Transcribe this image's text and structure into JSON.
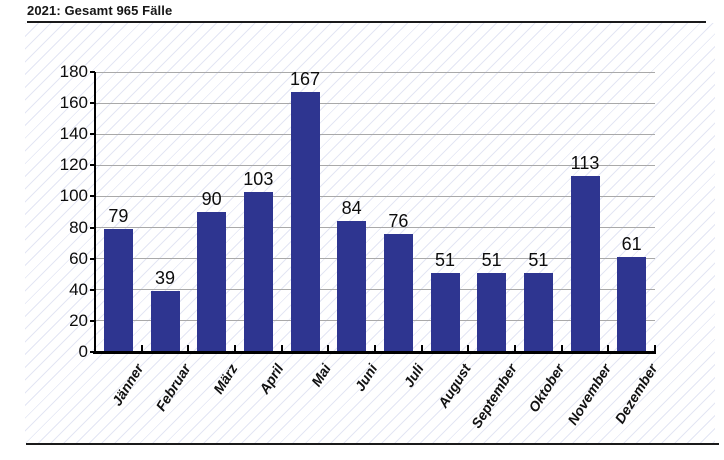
{
  "page": {
    "title": "2021: Gesamt 965 Fälle"
  },
  "chart_data": {
    "type": "bar",
    "title": "2021: Gesamt 965 Fälle",
    "categories": [
      "Jänner",
      "Februar",
      "März",
      "April",
      "Mai",
      "Juni",
      "Juli",
      "August",
      "September",
      "Oktober",
      "November",
      "Dezember"
    ],
    "values": [
      79,
      39,
      90,
      103,
      167,
      84,
      76,
      51,
      51,
      51,
      113,
      61
    ],
    "total": 965,
    "year": "2021",
    "xlabel": "",
    "ylabel": "",
    "ylim": [
      0,
      180
    ],
    "ytick_step": 20,
    "grid": true,
    "legend_position": "none",
    "colors": {
      "bar": "#2e3590",
      "grid": "#a9a9a9",
      "axis": "#000000",
      "text": "#0d0d0d",
      "hatch": "#cdd2eb"
    }
  }
}
